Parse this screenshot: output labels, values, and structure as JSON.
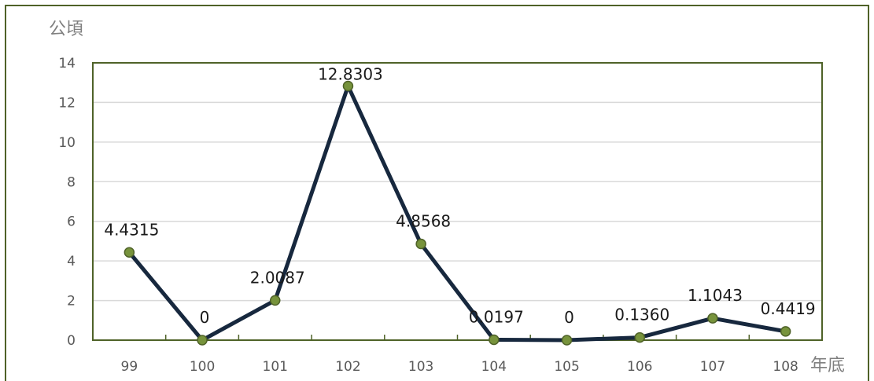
{
  "chart_data": {
    "type": "line",
    "categories": [
      "99",
      "100",
      "101",
      "102",
      "103",
      "104",
      "105",
      "106",
      "107",
      "108"
    ],
    "values": [
      4.4315,
      0,
      2.0087,
      12.8303,
      4.8568,
      0.0197,
      0,
      0.136,
      1.1043,
      0.4419
    ],
    "data_labels": [
      "4.4315",
      "0",
      "2.0087",
      "12.8303",
      "4.8568",
      "0.0197",
      "0",
      "0.1360",
      "1.1043",
      "0.4419"
    ],
    "ylabel": "公頃",
    "xlabel": "年底",
    "ylim": [
      0,
      14
    ],
    "yticks": [
      "0",
      "2",
      "4",
      "6",
      "8",
      "10",
      "12",
      "14"
    ],
    "grid": true,
    "colors": {
      "line": "#17283e",
      "marker_fill": "#77933c",
      "marker_stroke": "#4f6228",
      "frame": "#4f6228",
      "grid": "#d9d9d9"
    }
  }
}
